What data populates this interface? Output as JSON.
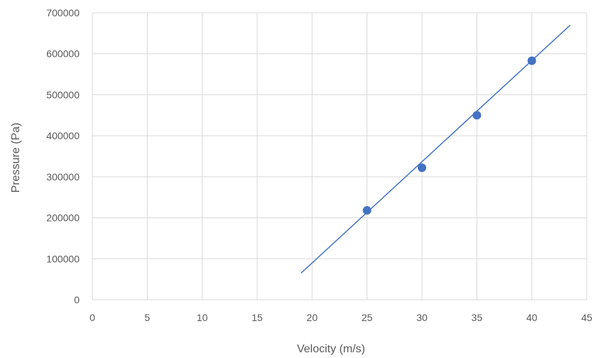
{
  "chart_data": {
    "type": "scatter",
    "title": "",
    "xlabel": "Velocity (m/s)",
    "ylabel": "Pressure (Pa)",
    "xlim": [
      0,
      45
    ],
    "ylim": [
      0,
      700000
    ],
    "x_ticks": [
      0,
      5,
      10,
      15,
      20,
      25,
      30,
      35,
      40,
      45
    ],
    "y_ticks": [
      0,
      100000,
      200000,
      300000,
      400000,
      500000,
      600000,
      700000
    ],
    "grid": true,
    "legend": "none",
    "series": [
      {
        "x": [
          25,
          30,
          35,
          40
        ],
        "y": [
          218000,
          322000,
          450000,
          583000
        ],
        "color": "#4472c4",
        "marker": "circle"
      }
    ],
    "trendline": {
      "type": "linear",
      "x": [
        19,
        43.5
      ],
      "y": [
        65000,
        670000
      ],
      "color": "#4472c4"
    },
    "colors": {
      "grid": "#d9d9d9",
      "text": "#595959"
    }
  }
}
